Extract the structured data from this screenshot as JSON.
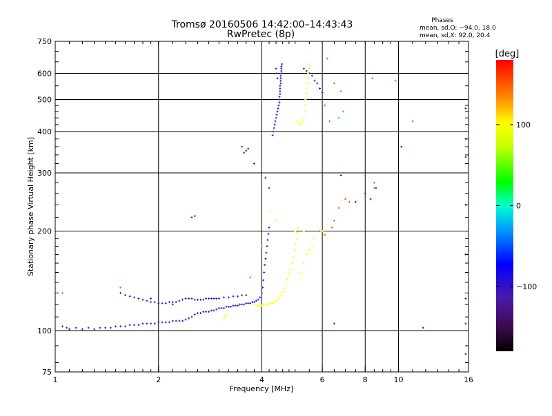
{
  "chart_data": {
    "type": "scatter",
    "title": "Tromsø 20160506 14:42:00–14:43:43",
    "subtitle": "RwPretec (8p)",
    "xlabel": "Frequency [MHz]",
    "ylabel": "Stationary phase Virtual Height [km]",
    "x_scale": "log",
    "y_scale": "log",
    "xlim": [
      1,
      16
    ],
    "ylim": [
      75,
      750
    ],
    "x_ticks": [
      1,
      2,
      4,
      6,
      8,
      10,
      16
    ],
    "x_tick_labels": [
      "1",
      "2",
      "4",
      "6",
      "8",
      "10",
      "16"
    ],
    "y_ticks": [
      75,
      100,
      200,
      300,
      400,
      500,
      600,
      750
    ],
    "y_tick_labels": [
      "75",
      "100",
      "200",
      "300",
      "400",
      "500",
      "600",
      "750"
    ],
    "grid": true,
    "phase_info": {
      "heading": "Phases",
      "line1": "mean, sd,O: −94.0, 18.0",
      "line2": "mean, sd,X:  92.0, 20.4"
    },
    "colorbar": {
      "label": "[deg]",
      "range": [
        -180,
        180
      ],
      "ticks": [
        100,
        0,
        -100
      ],
      "tick_labels": [
        "100",
        "0",
        "−100"
      ],
      "colormap": "rainbow"
    },
    "series": [
      {
        "comment_free": true,
        "phase": -100,
        "points": [
          [
            1.05,
            103
          ],
          [
            1.08,
            102
          ],
          [
            1.1,
            101
          ],
          [
            1.15,
            102
          ],
          [
            1.2,
            101
          ],
          [
            1.25,
            102
          ],
          [
            1.3,
            101
          ],
          [
            1.35,
            102
          ],
          [
            1.4,
            102
          ],
          [
            1.45,
            102
          ],
          [
            1.5,
            103
          ],
          [
            1.55,
            103
          ],
          [
            1.6,
            103
          ],
          [
            1.65,
            104
          ],
          [
            1.7,
            104
          ],
          [
            1.75,
            104
          ],
          [
            1.8,
            105
          ],
          [
            1.85,
            105
          ],
          [
            1.9,
            105
          ],
          [
            1.95,
            105
          ],
          [
            2.0,
            106
          ],
          [
            2.05,
            106
          ],
          [
            2.1,
            106
          ],
          [
            2.15,
            106
          ],
          [
            2.2,
            107
          ],
          [
            2.25,
            107
          ],
          [
            2.3,
            107
          ],
          [
            2.35,
            107
          ],
          [
            2.4,
            108
          ],
          [
            2.45,
            109
          ],
          [
            2.5,
            110
          ],
          [
            2.55,
            112
          ],
          [
            2.6,
            113
          ],
          [
            2.65,
            113
          ],
          [
            2.7,
            114
          ],
          [
            2.75,
            114
          ],
          [
            2.8,
            114
          ],
          [
            2.85,
            115
          ],
          [
            2.9,
            115
          ],
          [
            2.95,
            116
          ],
          [
            3.0,
            117
          ],
          [
            3.05,
            117
          ],
          [
            3.1,
            117
          ],
          [
            3.15,
            118
          ],
          [
            3.2,
            118
          ],
          [
            3.25,
            118
          ],
          [
            3.3,
            119
          ],
          [
            3.35,
            119
          ],
          [
            3.4,
            119
          ],
          [
            3.45,
            120
          ],
          [
            3.5,
            120
          ],
          [
            3.55,
            120
          ],
          [
            3.6,
            121
          ],
          [
            3.65,
            121
          ],
          [
            3.7,
            121
          ],
          [
            3.75,
            122
          ],
          [
            3.8,
            122
          ],
          [
            3.85,
            123
          ],
          [
            3.9,
            124
          ],
          [
            3.95,
            126
          ],
          [
            4.0,
            130
          ],
          [
            4.02,
            135
          ],
          [
            4.04,
            142
          ],
          [
            4.06,
            150
          ],
          [
            4.08,
            158
          ],
          [
            4.1,
            165
          ],
          [
            4.12,
            172
          ],
          [
            4.14,
            180
          ],
          [
            4.16,
            188
          ],
          [
            4.18,
            196
          ],
          [
            4.2,
            205
          ],
          [
            1.55,
            130
          ],
          [
            1.6,
            128
          ],
          [
            1.65,
            127
          ],
          [
            1.7,
            126
          ],
          [
            1.75,
            125
          ],
          [
            1.8,
            124
          ],
          [
            1.85,
            123
          ],
          [
            1.9,
            122
          ],
          [
            1.95,
            122
          ],
          [
            2.0,
            121
          ],
          [
            2.05,
            121
          ],
          [
            2.1,
            121
          ],
          [
            2.15,
            122
          ],
          [
            2.2,
            122
          ],
          [
            2.25,
            122
          ],
          [
            2.3,
            123
          ],
          [
            2.35,
            124
          ],
          [
            2.4,
            125
          ],
          [
            2.45,
            125
          ],
          [
            2.5,
            125
          ],
          [
            2.55,
            124
          ],
          [
            2.6,
            124
          ],
          [
            2.65,
            124
          ],
          [
            2.7,
            124
          ],
          [
            2.75,
            125
          ],
          [
            2.8,
            125
          ],
          [
            2.85,
            125
          ],
          [
            2.9,
            125
          ],
          [
            2.95,
            125
          ],
          [
            3.0,
            125
          ],
          [
            3.1,
            126
          ],
          [
            3.2,
            126
          ],
          [
            3.3,
            127
          ],
          [
            3.4,
            127
          ],
          [
            3.5,
            128
          ],
          [
            3.6,
            128
          ],
          [
            4.3,
            390
          ],
          [
            4.32,
            400
          ],
          [
            4.34,
            410
          ],
          [
            4.36,
            420
          ],
          [
            4.38,
            430
          ],
          [
            4.4,
            440
          ],
          [
            4.42,
            450
          ],
          [
            4.44,
            460
          ],
          [
            4.46,
            470
          ],
          [
            4.48,
            480
          ],
          [
            4.5,
            490
          ],
          [
            4.5,
            500
          ],
          [
            4.5,
            510
          ],
          [
            4.52,
            520
          ],
          [
            4.52,
            530
          ],
          [
            4.52,
            540
          ],
          [
            4.52,
            550
          ],
          [
            4.54,
            560
          ],
          [
            4.54,
            570
          ],
          [
            4.54,
            580
          ],
          [
            4.54,
            590
          ],
          [
            4.56,
            600
          ],
          [
            4.56,
            610
          ],
          [
            4.56,
            620
          ],
          [
            4.56,
            630
          ],
          [
            4.58,
            640
          ],
          [
            4.4,
            620
          ],
          [
            4.42,
            600
          ],
          [
            4.44,
            580
          ],
          [
            3.55,
            345
          ],
          [
            3.6,
            350
          ],
          [
            3.65,
            355
          ],
          [
            3.5,
            360
          ],
          [
            5.3,
            620
          ],
          [
            5.4,
            610
          ],
          [
            5.5,
            600
          ],
          [
            5.6,
            590
          ],
          [
            5.7,
            570
          ],
          [
            5.8,
            560
          ],
          [
            5.9,
            540
          ],
          [
            6.0,
            525
          ],
          [
            2.5,
            220
          ],
          [
            2.55,
            222
          ],
          [
            1.9,
            125
          ],
          [
            2.2,
            120
          ],
          [
            3.8,
            320
          ],
          [
            4.1,
            290
          ],
          [
            4.2,
            270
          ],
          [
            6.5,
            105
          ],
          [
            6.8,
            295
          ],
          [
            7.5,
            245
          ],
          [
            8.0,
            260
          ],
          [
            8.3,
            250
          ],
          [
            8.6,
            270
          ],
          [
            10.2,
            360
          ],
          [
            11.8,
            102
          ],
          [
            15.7,
            470
          ],
          [
            15.7,
            380
          ],
          [
            15.7,
            335
          ],
          [
            15.7,
            240
          ],
          [
            15.7,
            170
          ],
          [
            15.7,
            125
          ],
          [
            15.7,
            105
          ],
          [
            15.7,
            85
          ]
        ]
      },
      {
        "phase": 100,
        "points": [
          [
            3.1,
            108
          ],
          [
            3.12,
            110
          ],
          [
            3.15,
            112
          ],
          [
            3.8,
            120
          ],
          [
            3.85,
            119
          ],
          [
            3.9,
            119
          ],
          [
            3.95,
            119
          ],
          [
            4.0,
            119
          ],
          [
            4.05,
            119
          ],
          [
            4.1,
            120
          ],
          [
            4.15,
            120
          ],
          [
            4.2,
            120
          ],
          [
            4.25,
            121
          ],
          [
            4.3,
            121
          ],
          [
            4.35,
            122
          ],
          [
            4.4,
            123
          ],
          [
            4.45,
            124
          ],
          [
            4.5,
            126
          ],
          [
            4.55,
            128
          ],
          [
            4.6,
            131
          ],
          [
            4.65,
            134
          ],
          [
            4.7,
            138
          ],
          [
            4.75,
            143
          ],
          [
            4.8,
            148
          ],
          [
            4.85,
            153
          ],
          [
            4.9,
            160
          ],
          [
            4.95,
            167
          ],
          [
            5.0,
            175
          ],
          [
            5.02,
            183
          ],
          [
            5.04,
            190
          ],
          [
            5.06,
            198
          ],
          [
            5.05,
            430
          ],
          [
            5.1,
            425
          ],
          [
            5.15,
            420
          ],
          [
            5.2,
            425
          ],
          [
            5.25,
            430
          ],
          [
            5.3,
            440
          ],
          [
            5.32,
            460
          ],
          [
            5.34,
            480
          ],
          [
            5.36,
            500
          ],
          [
            5.38,
            520
          ],
          [
            5.4,
            540
          ],
          [
            5.42,
            560
          ],
          [
            5.44,
            580
          ],
          [
            5.46,
            600
          ],
          [
            5.48,
            620
          ],
          [
            5.5,
            640
          ],
          [
            5.2,
            150
          ],
          [
            5.3,
            160
          ],
          [
            5.4,
            170
          ],
          [
            5.5,
            175
          ],
          [
            5.6,
            180
          ],
          [
            5.7,
            190
          ],
          [
            6.0,
            200
          ],
          [
            6.2,
            210
          ],
          [
            5.0,
            200
          ],
          [
            5.1,
            205
          ],
          [
            5.3,
            200
          ],
          [
            4.2,
            230
          ],
          [
            4.4,
            215
          ]
        ]
      },
      {
        "phase": 150,
        "points": [
          [
            6.2,
            665
          ],
          [
            6.5,
            560
          ],
          [
            6.8,
            530
          ],
          [
            6.1,
            480
          ],
          [
            6.3,
            430
          ],
          [
            7.0,
            250
          ],
          [
            7.2,
            245
          ],
          [
            8.4,
            580
          ],
          [
            9.8,
            570
          ],
          [
            11.0,
            430
          ],
          [
            8.5,
            280
          ],
          [
            5.9,
            200
          ],
          [
            6.1,
            195
          ],
          [
            6.4,
            205
          ],
          [
            6.5,
            215
          ],
          [
            6.7,
            235
          ]
        ]
      },
      {
        "phase": -20,
        "points": [
          [
            1.05,
            130
          ],
          [
            1.55,
            135
          ],
          [
            6.7,
            440
          ],
          [
            6.9,
            460
          ],
          [
            3.7,
            145
          ],
          [
            4.0,
            180
          ],
          [
            8.5,
            270
          ]
        ]
      }
    ]
  }
}
